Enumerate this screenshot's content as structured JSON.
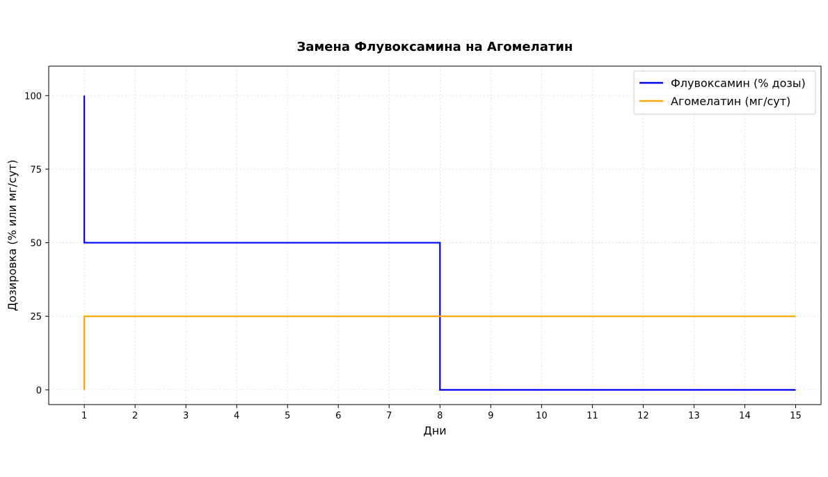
{
  "chart_data": {
    "type": "line",
    "title": "Замена Флувоксамина на Агомелатин",
    "xlabel": "Дни",
    "ylabel": "Дозировка (% или мг/сут)",
    "xlim": [
      0.3,
      15.5
    ],
    "ylim": [
      -5,
      110
    ],
    "x_ticks": [
      1,
      2,
      3,
      4,
      5,
      6,
      7,
      8,
      9,
      10,
      11,
      12,
      13,
      14,
      15
    ],
    "y_ticks": [
      0,
      25,
      50,
      75,
      100
    ],
    "grid": true,
    "legend_position": "top-right",
    "series": [
      {
        "name": "Флувоксамин (% дозы)",
        "color": "#0000ff",
        "step": "post",
        "x": [
          1,
          2,
          3,
          4,
          5,
          6,
          7,
          8,
          9,
          10,
          11,
          12,
          13,
          14,
          15
        ],
        "values": [
          100,
          50,
          50,
          50,
          50,
          50,
          50,
          50,
          0,
          0,
          0,
          0,
          0,
          0,
          0
        ],
        "points": [
          [
            1,
            100
          ],
          [
            1,
            50
          ],
          [
            8,
            50
          ],
          [
            8,
            0
          ],
          [
            15,
            0
          ]
        ]
      },
      {
        "name": "Агомелатин (мг/сут)",
        "color": "#ffa500",
        "step": "post",
        "x": [
          1,
          2,
          3,
          4,
          5,
          6,
          7,
          8,
          9,
          10,
          11,
          12,
          13,
          14,
          15
        ],
        "values": [
          0,
          25,
          25,
          25,
          25,
          25,
          25,
          25,
          25,
          25,
          25,
          25,
          25,
          25,
          25
        ],
        "points": [
          [
            1,
            0
          ],
          [
            1,
            25
          ],
          [
            15,
            25
          ]
        ]
      }
    ]
  }
}
